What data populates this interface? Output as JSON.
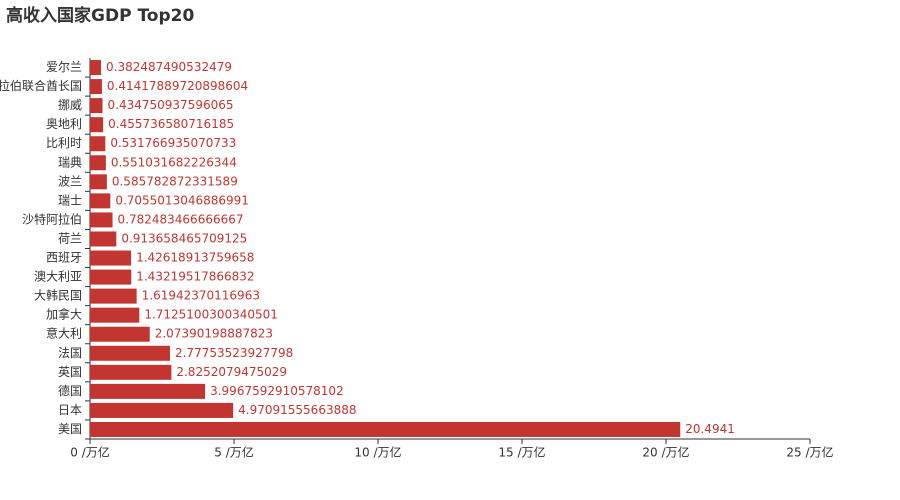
{
  "chart_data": {
    "type": "hbar",
    "title": "高收入国家GDP Top20",
    "categories": [
      "美国",
      "日本",
      "德国",
      "英国",
      "法国",
      "意大利",
      "加拿大",
      "大韩民国",
      "澳大利亚",
      "西班牙",
      "荷兰",
      "沙特阿拉伯",
      "瑞士",
      "波兰",
      "瑞典",
      "比利时",
      "奥地利",
      "挪威",
      "阿拉伯联合酋长国",
      "爱尔兰"
    ],
    "values": [
      20.4941,
      4.97091555663888,
      3.9967592910578102,
      2.8252079475029,
      2.77753523927798,
      2.07390198887823,
      1.7125100300340501,
      1.61942370116963,
      1.43219517866832,
      1.42618913759658,
      0.913658465709125,
      0.782483466666667,
      0.7055013046886991,
      0.585782872331589,
      0.551031682226344,
      0.531766935070733,
      0.455736580716185,
      0.434750937596065,
      0.41417889720898604,
      0.382487490532479
    ],
    "color": "#c23531",
    "xlim": [
      0,
      25
    ],
    "xticks": [
      {
        "value": 0,
        "label": "0 /万亿"
      },
      {
        "value": 5,
        "label": "5 /万亿"
      },
      {
        "value": 10,
        "label": "10 /万亿"
      },
      {
        "value": 15,
        "label": "15 /万亿"
      },
      {
        "value": 20,
        "label": "20 /万亿"
      },
      {
        "value": 25,
        "label": "25 /万亿"
      }
    ]
  }
}
